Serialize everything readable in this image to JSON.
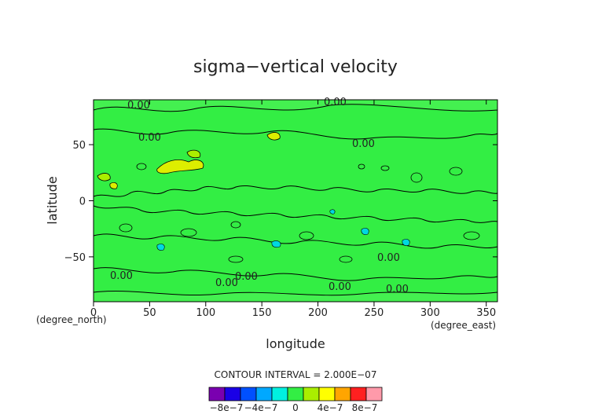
{
  "chart_data": {
    "type": "heatmap",
    "title": "sigma−vertical velocity",
    "xlabel": "longitude",
    "ylabel": "latitude",
    "x_unit": "(degree_east)",
    "y_unit": "(degree_north)",
    "xlim": [
      0,
      360
    ],
    "ylim": [
      -90,
      90
    ],
    "x_ticks": [
      "0",
      "50",
      "100",
      "150",
      "200",
      "250",
      "300",
      "350"
    ],
    "y_ticks": [
      "−50",
      "0",
      "50"
    ],
    "contour_interval_text": "CONTOUR INTERVAL = 2.000E−07",
    "contour_labels": [
      "0.00",
      "0.00",
      "0.00",
      "0.00",
      "0.00",
      "0.00",
      "0.00",
      "0.00",
      "0.00",
      "0.00"
    ],
    "colorbar": {
      "levels": [
        -1e-06,
        -8e-07,
        -6e-07,
        -4e-07,
        -2e-07,
        0,
        2e-07,
        4e-07,
        6e-07,
        8e-07,
        1e-06
      ],
      "colors": [
        "#7a00b0",
        "#1a00e6",
        "#0050ff",
        "#00a8ff",
        "#00f0e0",
        "#33ee44",
        "#aaee00",
        "#ffff00",
        "#ffa500",
        "#ff2020",
        "#ff9aaa"
      ],
      "tick_labels": [
        "−8e−7",
        "−4e−7",
        "0",
        "4e−7",
        "8e−7"
      ]
    },
    "background_value": 0,
    "grid": false,
    "legend": "bottom-center colorbar"
  }
}
